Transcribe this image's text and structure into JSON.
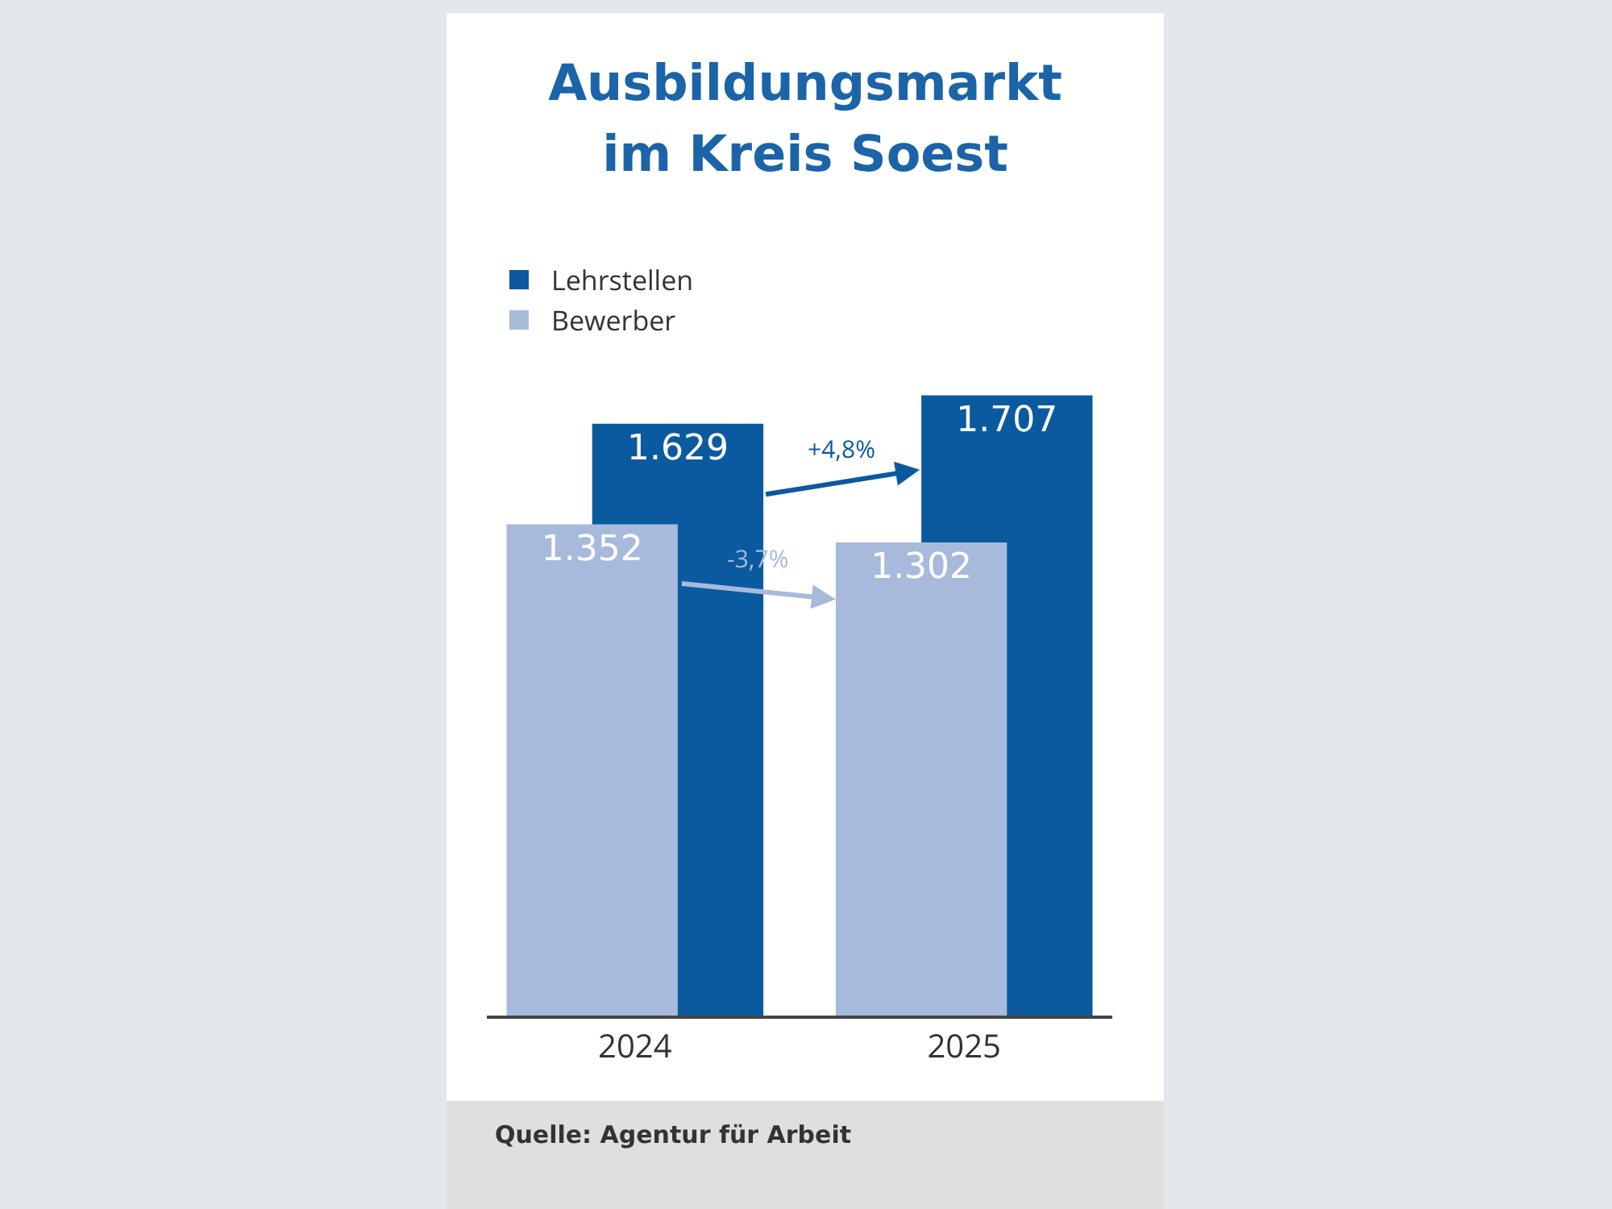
{
  "chart_data": {
    "type": "bar",
    "title": "Ausbildungsmarkt im Kreis Soest",
    "categories": [
      "2024",
      "2025"
    ],
    "series": [
      {
        "name": "Lehrstellen",
        "color": "#0b5a9f",
        "values": [
          1629,
          1707
        ],
        "value_labels": [
          "1.629",
          "1.707"
        ]
      },
      {
        "name": "Bewerber",
        "color": "#a7badb",
        "values": [
          1352,
          1302
        ],
        "value_labels": [
          "1.352",
          "1.302"
        ]
      }
    ],
    "annotations": [
      "+4,8%",
      "-3,7%",
      "Quelle: Agentur für Arbeit"
    ],
    "legend": "top left"
  }
}
